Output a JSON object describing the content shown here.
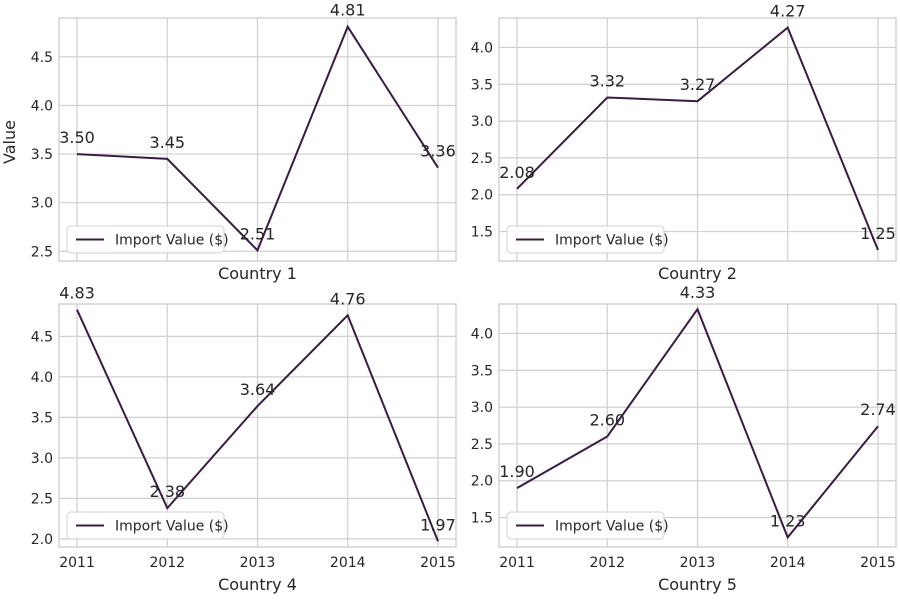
{
  "figure": {
    "ylabel": "Value",
    "line_color": "#3b1a45"
  },
  "chart_data": [
    {
      "type": "line",
      "xlabel": "Country 1",
      "ylabel": "Value",
      "x": [
        2011,
        2012,
        2013,
        2014,
        2015
      ],
      "series": [
        {
          "name": "Import Value ($)",
          "values": [
            3.5,
            3.45,
            2.51,
            4.81,
            3.36
          ]
        }
      ],
      "data_labels": [
        "3.50",
        "3.45",
        "2.51",
        "4.81",
        "3.36"
      ],
      "ylim": [
        2.4,
        4.9
      ],
      "yticks": [
        2.5,
        3.0,
        3.5,
        4.0,
        4.5
      ],
      "ytick_labels": [
        "2.5",
        "3.0",
        "3.5",
        "4.0",
        "4.5"
      ],
      "xticks_visible": false,
      "grid": true,
      "legend": "lower-left"
    },
    {
      "type": "line",
      "xlabel": "Country 2",
      "x": [
        2011,
        2012,
        2013,
        2014,
        2015
      ],
      "series": [
        {
          "name": "Import Value ($)",
          "values": [
            2.08,
            3.32,
            3.27,
            4.27,
            1.25
          ]
        }
      ],
      "data_labels": [
        "2.08",
        "3.32",
        "3.27",
        "4.27",
        "1.25"
      ],
      "ylim": [
        1.1,
        4.4
      ],
      "yticks": [
        1.5,
        2.0,
        2.5,
        3.0,
        3.5,
        4.0
      ],
      "ytick_labels": [
        "1.5",
        "2.0",
        "2.5",
        "3.0",
        "3.5",
        "4.0"
      ],
      "xticks_visible": false,
      "grid": true,
      "legend": "lower-left"
    },
    {
      "type": "line",
      "xlabel": "Country 4",
      "x": [
        2011,
        2012,
        2013,
        2014,
        2015
      ],
      "xtick_labels": [
        "2011",
        "2012",
        "2013",
        "2014",
        "2015"
      ],
      "series": [
        {
          "name": "Import Value ($)",
          "values": [
            4.83,
            2.38,
            3.64,
            4.76,
            1.97
          ]
        }
      ],
      "data_labels": [
        "4.83",
        "2.38",
        "3.64",
        "4.76",
        "1.97"
      ],
      "ylim": [
        1.9,
        4.9
      ],
      "yticks": [
        2.0,
        2.5,
        3.0,
        3.5,
        4.0,
        4.5
      ],
      "ytick_labels": [
        "2.0",
        "2.5",
        "3.0",
        "3.5",
        "4.0",
        "4.5"
      ],
      "xticks_visible": true,
      "grid": true,
      "legend": "lower-left"
    },
    {
      "type": "line",
      "xlabel": "Country 5",
      "x": [
        2011,
        2012,
        2013,
        2014,
        2015
      ],
      "xtick_labels": [
        "2011",
        "2012",
        "2013",
        "2014",
        "2015"
      ],
      "series": [
        {
          "name": "Import Value ($)",
          "values": [
            1.9,
            2.6,
            4.33,
            1.23,
            2.74
          ]
        }
      ],
      "data_labels": [
        "1.90",
        "2.60",
        "4.33",
        "1.23",
        "2.74"
      ],
      "ylim": [
        1.1,
        4.4
      ],
      "yticks": [
        1.5,
        2.0,
        2.5,
        3.0,
        3.5,
        4.0
      ],
      "ytick_labels": [
        "1.5",
        "2.0",
        "2.5",
        "3.0",
        "3.5",
        "4.0"
      ],
      "xticks_visible": true,
      "grid": true,
      "legend": "lower-left"
    }
  ]
}
